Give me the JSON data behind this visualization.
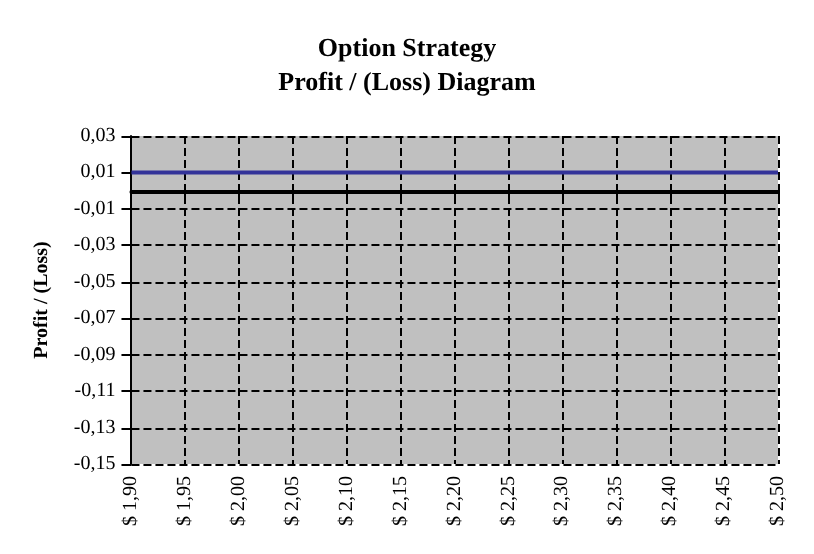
{
  "chart_data": {
    "type": "line",
    "title": "Option Strategy",
    "subtitle": "Profit / (Loss) Diagram",
    "ylabel": "Profit / (Loss)",
    "categories": [
      "$ 1,90",
      "$ 1,95",
      "$ 2,00",
      "$ 2,05",
      "$ 2,10",
      "$ 2,15",
      "$ 2,20",
      "$ 2,25",
      "$ 2,30",
      "$ 2,35",
      "$ 2,40",
      "$ 2,45",
      "$ 2,50"
    ],
    "series": [
      {
        "color": "#333399",
        "values": [
          0.01,
          0.01,
          0.01,
          0.01,
          0.01,
          0.01,
          0.01,
          0.01,
          0.01,
          0.01,
          0.01,
          0.01,
          0.01
        ]
      }
    ],
    "ylim": [
      -0.15,
      0.03
    ],
    "yticks": [
      {
        "value": 0.03,
        "label": "0,03"
      },
      {
        "value": 0.01,
        "label": "0,01"
      },
      {
        "value": -0.01,
        "label": "-0,01"
      },
      {
        "value": -0.03,
        "label": "-0,03"
      },
      {
        "value": -0.05,
        "label": "-0,05"
      },
      {
        "value": -0.07,
        "label": "-0,07"
      },
      {
        "value": -0.09,
        "label": "-0,09"
      },
      {
        "value": -0.11,
        "label": "-0,11"
      },
      {
        "value": -0.13,
        "label": "-0,13"
      },
      {
        "value": -0.15,
        "label": "-0,15"
      }
    ],
    "grid": true,
    "marker": "none",
    "line_style": "solid"
  }
}
